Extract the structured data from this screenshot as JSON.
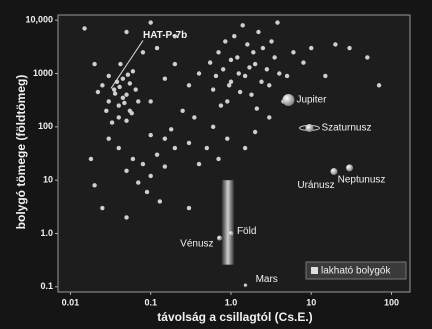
{
  "chart_data": {
    "type": "scatter",
    "x_label": "távolság a csillagtól (Cs.E.)",
    "y_label": "bolygó tömege (földtömeg)",
    "log_x": true,
    "log_y": true,
    "xlim": [
      0.007,
      170
    ],
    "ylim": [
      0.08,
      12500
    ],
    "xticks": [
      0.01,
      0.1,
      {
        "value": 1,
        "label": "1.0"
      },
      10,
      100
    ],
    "yticks": [
      0.1,
      {
        "value": 1,
        "label": "1.0"
      },
      10,
      100,
      1000,
      {
        "value": 10000,
        "label": "10,000"
      }
    ],
    "series": [
      {
        "color": "#cfcfcf",
        "x": [
          0.03,
          0.035,
          0.04,
          0.045,
          0.05,
          0.055,
          0.04,
          0.03,
          0.025,
          0.06,
          0.045,
          0.038,
          0.05,
          0.028,
          0.065,
          0.042,
          0.033,
          0.055,
          0.047,
          0.036,
          0.052,
          0.07,
          0.022,
          0.058,
          0.041,
          0.02,
          0.05,
          0.08,
          0.1,
          0.04,
          0.06,
          0.09,
          0.12,
          0.03,
          0.07,
          0.15,
          0.2,
          0.018,
          0.1,
          0.025,
          0.05,
          0.13,
          0.1,
          0.15,
          0.2,
          0.3,
          0.12,
          0.25,
          0.4,
          0.18,
          0.35,
          0.08,
          0.05,
          0.015,
          0.1,
          0.2,
          0.3,
          0.5,
          0.7,
          0.02,
          0.15,
          0.6,
          0.8,
          1,
          1.2,
          1.5,
          2,
          2.5,
          3,
          1.8,
          0.9,
          0.7,
          1.1,
          1.4,
          2.2,
          3.5,
          4,
          1.6,
          2.8,
          0.65,
          1.3,
          0.75,
          2.4,
          1.9,
          3.2,
          4.5,
          1,
          1.7,
          2.1,
          0.55,
          0.85,
          5,
          6,
          3.8,
          1.25,
          0.95,
          10,
          20,
          30,
          50,
          70,
          15,
          8,
          0.6,
          0.9,
          1.5,
          0.4,
          3,
          2,
          0.3
        ],
        "values": [
          300,
          500,
          250,
          800,
          400,
          200,
          150,
          900,
          600,
          1100,
          350,
          700,
          130,
          200,
          500,
          1500,
          120,
          650,
          280,
          420,
          950,
          300,
          450,
          180,
          560,
          8,
          15,
          20,
          12,
          40,
          25,
          6,
          30,
          60,
          9,
          18,
          40,
          25,
          70,
          3,
          2,
          4,
          300,
          800,
          1500,
          600,
          3000,
          200,
          1000,
          90,
          150,
          2500,
          6000,
          7000,
          9000,
          5000,
          50,
          40,
          25,
          1500,
          60,
          500,
          1200,
          700,
          2000,
          900,
          1500,
          3000,
          600,
          400,
          300,
          2500,
          5000,
          8000,
          6000,
          2000,
          1000,
          3500,
          1200,
          900,
          450,
          250,
          700,
          2500,
          4000,
          300,
          1800,
          1300,
          220,
          1600,
          4000,
          900,
          2500,
          9000,
          1000,
          600,
          3000,
          3500,
          3000,
          2000,
          600,
          900,
          1600,
          100,
          60,
          40,
          20,
          150,
          80,
          3
        ]
      },
      {
        "color": "#e6e6e6",
        "x": [
          5.2,
          9.5,
          19.2,
          30,
          1,
          0.72,
          1.52
        ],
        "values": [
          318,
          95,
          14.5,
          17,
          1,
          0.82,
          0.107
        ],
        "labels": [
          "Jupiter",
          "Szaturnusz",
          "Uránusz",
          "Neptunusz",
          "Föld",
          "Vénusz",
          "Mars"
        ]
      }
    ],
    "habitable_zone": {
      "name": "lakható bolygók",
      "xlim": [
        0.77,
        1.09
      ],
      "ylim": [
        0.26,
        10
      ]
    },
    "annotations": [
      {
        "text": "HAT-P-7b",
        "x": 0.032,
        "y": 525
      }
    ]
  }
}
